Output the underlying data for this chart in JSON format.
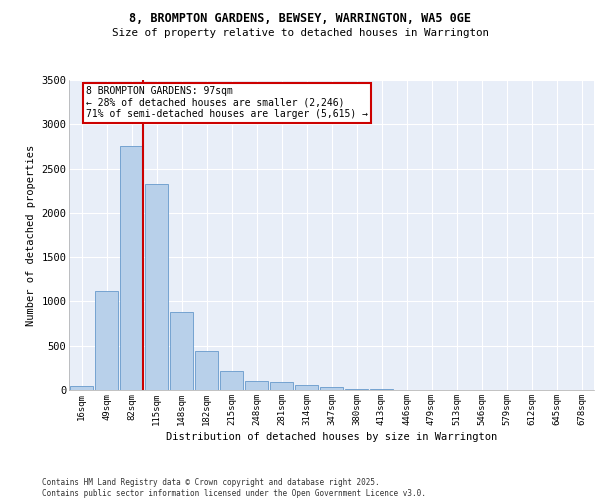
{
  "title_line1": "8, BROMPTON GARDENS, BEWSEY, WARRINGTON, WA5 0GE",
  "title_line2": "Size of property relative to detached houses in Warrington",
  "xlabel": "Distribution of detached houses by size in Warrington",
  "ylabel": "Number of detached properties",
  "categories": [
    "16sqm",
    "49sqm",
    "82sqm",
    "115sqm",
    "148sqm",
    "182sqm",
    "215sqm",
    "248sqm",
    "281sqm",
    "314sqm",
    "347sqm",
    "380sqm",
    "413sqm",
    "446sqm",
    "479sqm",
    "513sqm",
    "546sqm",
    "579sqm",
    "612sqm",
    "645sqm",
    "678sqm"
  ],
  "values": [
    40,
    1120,
    2760,
    2330,
    880,
    440,
    210,
    105,
    85,
    55,
    30,
    15,
    10,
    5,
    0,
    0,
    0,
    0,
    0,
    0,
    0
  ],
  "bar_color": "#b8d0ea",
  "bar_edge_color": "#6699cc",
  "background_color": "#e8eef8",
  "grid_color": "#ffffff",
  "vline_color": "#cc0000",
  "vline_x_index": 2,
  "annotation_text": "8 BROMPTON GARDENS: 97sqm\n← 28% of detached houses are smaller (2,246)\n71% of semi-detached houses are larger (5,615) →",
  "annotation_box_facecolor": "#ffffff",
  "annotation_box_edgecolor": "#cc0000",
  "ylim": [
    0,
    3500
  ],
  "yticks": [
    0,
    500,
    1000,
    1500,
    2000,
    2500,
    3000,
    3500
  ],
  "footer_line1": "Contains HM Land Registry data © Crown copyright and database right 2025.",
  "footer_line2": "Contains public sector information licensed under the Open Government Licence v3.0."
}
